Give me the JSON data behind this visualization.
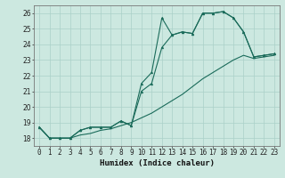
{
  "title": "",
  "xlabel": "Humidex (Indice chaleur)",
  "ylabel": "",
  "xlim": [
    -0.5,
    23.5
  ],
  "ylim": [
    17.5,
    26.5
  ],
  "yticks": [
    18,
    19,
    20,
    21,
    22,
    23,
    24,
    25,
    26
  ],
  "xticks": [
    0,
    1,
    2,
    3,
    4,
    5,
    6,
    7,
    8,
    9,
    10,
    11,
    12,
    13,
    14,
    15,
    16,
    17,
    18,
    19,
    20,
    21,
    22,
    23
  ],
  "bg_color": "#cce8e0",
  "line_color": "#1a6b5a",
  "grid_color": "#aad0c8",
  "line1_x": [
    0,
    1,
    2,
    3,
    4,
    5,
    6,
    7,
    8,
    9,
    10,
    11,
    12,
    13,
    14,
    15,
    16,
    17,
    18,
    19,
    20,
    21,
    22,
    23
  ],
  "line1_y": [
    18.7,
    18.0,
    18.0,
    18.0,
    18.5,
    18.7,
    18.7,
    18.7,
    19.1,
    18.8,
    21.5,
    22.2,
    25.7,
    24.6,
    24.8,
    24.7,
    26.0,
    26.0,
    26.1,
    25.7,
    24.8,
    23.2,
    23.3,
    23.4
  ],
  "line2_x": [
    0,
    1,
    2,
    3,
    4,
    5,
    6,
    7,
    8,
    9,
    10,
    11,
    12,
    13,
    14,
    15,
    16,
    17,
    18,
    19,
    20,
    21,
    22,
    23
  ],
  "line2_y": [
    18.7,
    18.0,
    18.0,
    18.0,
    18.5,
    18.7,
    18.7,
    18.7,
    19.1,
    18.8,
    21.0,
    21.5,
    23.8,
    24.6,
    24.8,
    24.7,
    26.0,
    26.0,
    26.1,
    25.7,
    24.8,
    23.2,
    23.3,
    23.4
  ],
  "line3_x": [
    0,
    1,
    2,
    3,
    4,
    5,
    6,
    7,
    8,
    9,
    10,
    11,
    12,
    13,
    14,
    15,
    16,
    17,
    18,
    19,
    20,
    21,
    22,
    23
  ],
  "line3_y": [
    18.7,
    18.0,
    18.0,
    18.0,
    18.2,
    18.3,
    18.5,
    18.6,
    18.8,
    19.0,
    19.3,
    19.6,
    20.0,
    20.4,
    20.8,
    21.3,
    21.8,
    22.2,
    22.6,
    23.0,
    23.3,
    23.1,
    23.2,
    23.3
  ],
  "tick_fontsize": 5.5,
  "xlabel_fontsize": 6.5
}
